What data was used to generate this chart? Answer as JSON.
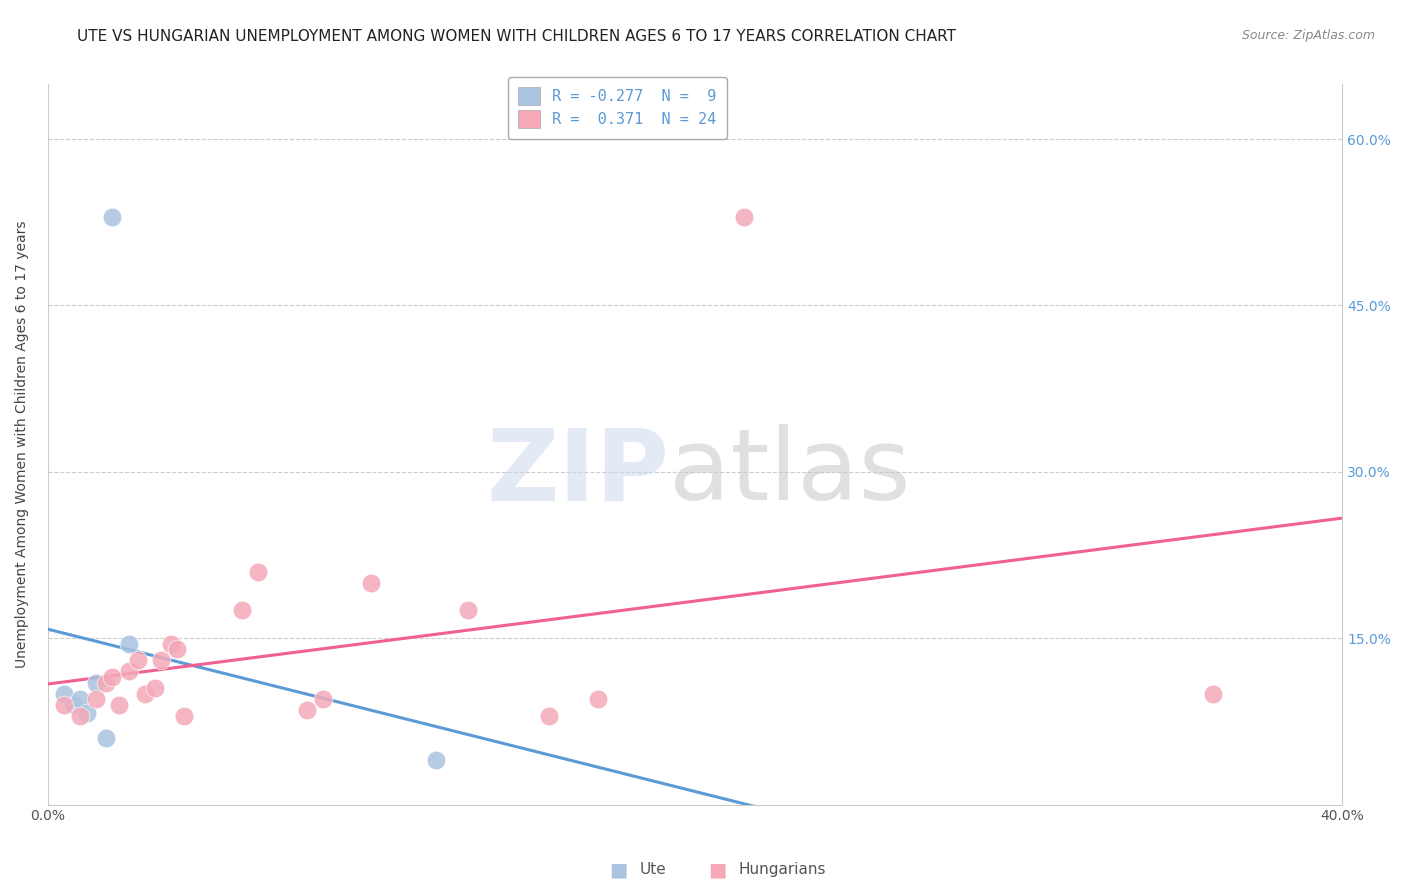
{
  "title": "UTE VS HUNGARIAN UNEMPLOYMENT AMONG WOMEN WITH CHILDREN AGES 6 TO 17 YEARS CORRELATION CHART",
  "source": "Source: ZipAtlas.com",
  "ylabel": "Unemployment Among Women with Children Ages 6 to 17 years",
  "xlim": [
    0.0,
    0.4
  ],
  "ylim": [
    0.0,
    0.65
  ],
  "xticks": [
    0.0,
    0.4
  ],
  "xticklabels": [
    "0.0%",
    "40.0%"
  ],
  "yticks": [
    0.0,
    0.15,
    0.3,
    0.45,
    0.6
  ],
  "yticklabels": [
    "",
    "15.0%",
    "30.0%",
    "45.0%",
    "60.0%"
  ],
  "ute_points_x": [
    0.005,
    0.008,
    0.01,
    0.012,
    0.015,
    0.018,
    0.02,
    0.025,
    0.12
  ],
  "ute_points_y": [
    0.1,
    0.09,
    0.095,
    0.083,
    0.11,
    0.06,
    0.53,
    0.145,
    0.04
  ],
  "hungarian_points_x": [
    0.005,
    0.01,
    0.015,
    0.018,
    0.02,
    0.022,
    0.025,
    0.028,
    0.03,
    0.033,
    0.035,
    0.038,
    0.04,
    0.042,
    0.06,
    0.065,
    0.08,
    0.085,
    0.1,
    0.13,
    0.155,
    0.17,
    0.215,
    0.36
  ],
  "hungarian_points_y": [
    0.09,
    0.08,
    0.095,
    0.11,
    0.115,
    0.09,
    0.12,
    0.13,
    0.1,
    0.105,
    0.13,
    0.145,
    0.14,
    0.08,
    0.175,
    0.21,
    0.085,
    0.095,
    0.2,
    0.175,
    0.08,
    0.095,
    0.53,
    0.1
  ],
  "ute_color": "#a8c4e0",
  "hungarian_color": "#f4a8b8",
  "ute_line_color": "#5b9bd5",
  "hungarian_line_color": "#f06090",
  "ute_R": -0.277,
  "ute_N": 9,
  "hungarian_R": 0.371,
  "hungarian_N": 24,
  "background_color": "#ffffff",
  "title_fontsize": 11,
  "tick_fontsize": 10,
  "legend_fontsize": 11
}
